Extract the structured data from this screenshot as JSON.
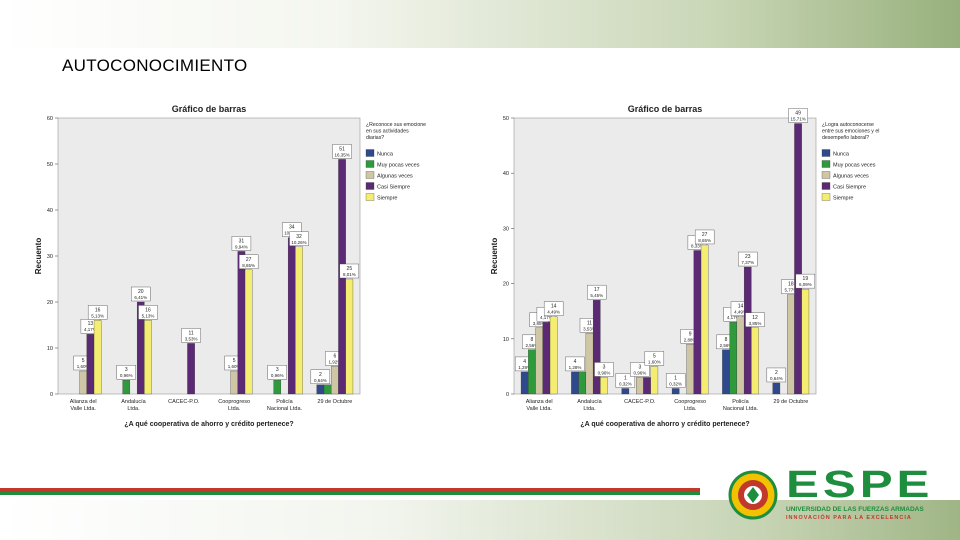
{
  "slide": {
    "title": "AUTOCONOCIMIENTO"
  },
  "logo": {
    "word": "ESPE",
    "line1": "UNIVERSIDAD DE LAS FUERZAS ARMADAS",
    "line2": "INNOVACIÓN PARA LA EXCELENCIA"
  },
  "colors": {
    "Nunca": "#2e4a8c",
    "Muy pocas veces": "#2f9a3c",
    "Algunas veces": "#cfc6a6",
    "Casi Siempre": "#5c2a74",
    "Siempre": "#f4ed72",
    "plot_bg": "#ebebeb"
  },
  "chart_data": [
    {
      "type": "bar",
      "title": "Gráfico de barras",
      "xlabel": "¿A qué cooperativa de ahorro y crédito pertenece?",
      "ylabel": "Recuento",
      "ylim": [
        0,
        60
      ],
      "yticks": [
        0,
        10,
        20,
        30,
        40,
        50,
        60
      ],
      "legend_title": "¿Reconoce sus emociones en sus actividades diarias?",
      "legend_position": "right",
      "categories": [
        "Alianza del Valle Ltda.",
        "Andalucía Ltda.",
        "CACEC-P.O.",
        "Cooprogreso Ltda.",
        "Policía Nacional Ltda.",
        "29 de Octubre"
      ],
      "series": [
        {
          "name": "Nunca",
          "values": [
            null,
            null,
            null,
            null,
            null,
            2
          ],
          "labels": [
            null,
            null,
            null,
            null,
            null,
            "2 0,64%"
          ]
        },
        {
          "name": "Muy pocas veces",
          "values": [
            null,
            3,
            null,
            null,
            3,
            2
          ],
          "labels": [
            null,
            "3 0,96%",
            null,
            null,
            "3 0,96%",
            null
          ]
        },
        {
          "name": "Algunas veces",
          "values": [
            5,
            null,
            null,
            5,
            null,
            6
          ],
          "labels": [
            "5 1,60%",
            null,
            null,
            "5 1,60%",
            null,
            "6 1,92%"
          ]
        },
        {
          "name": "Casi Siempre",
          "values": [
            13,
            20,
            11,
            31,
            34,
            51
          ],
          "labels": [
            "13 4,17%",
            "20 6,41%",
            "11 3,53%",
            "31 9,94%",
            "34 10,90%",
            "51 16,35%"
          ]
        },
        {
          "name": "Siempre",
          "values": [
            16,
            16,
            null,
            27,
            32,
            25
          ],
          "labels": [
            "16 5,13%",
            "16 5,13%",
            null,
            "27 8,65%",
            "32 10,26%",
            "25 8,01%"
          ]
        }
      ],
      "extra_labels": [
        {
          "category": "Alianza del Valle Ltda.",
          "text": "16 5,13%"
        },
        {
          "category": "Policía Nacional Ltda.",
          "text": "6 1,92%"
        },
        {
          "category": "Policía Nacional Ltda.",
          "text": "5 1,60%"
        },
        {
          "category": "29 de Octubre",
          "text": "11 3,53%"
        }
      ]
    },
    {
      "type": "bar",
      "title": "Gráfico de barras",
      "xlabel": "¿A qué cooperativa de ahorro y crédito pertenece?",
      "ylabel": "Recuento",
      "ylim": [
        0,
        50
      ],
      "yticks": [
        0,
        10,
        20,
        30,
        40,
        50
      ],
      "legend_title": "¿Logra autoconocerse entre sus emociones y el desempeño laboral?",
      "legend_position": "right",
      "categories": [
        "Alianza del Valle Ltda.",
        "Andalucía Ltda.",
        "CACEC-P.O.",
        "Cooprogreso Ltda.",
        "Policía Nacional Ltda.",
        "29 de Octubre"
      ],
      "series": [
        {
          "name": "Nunca",
          "values": [
            4,
            4,
            1,
            1,
            8,
            2
          ],
          "labels": [
            "4 1,28%",
            "4 1,28%",
            "1 0,32%",
            "1 0,32%",
            "8 2,56%",
            "2 0,64%"
          ]
        },
        {
          "name": "Muy pocas veces",
          "values": [
            8,
            4,
            null,
            null,
            13,
            null
          ],
          "labels": [
            "8 2,56%",
            null,
            null,
            null,
            "13 4,17%",
            null
          ]
        },
        {
          "name": "Algunas veces",
          "values": [
            12,
            11,
            3,
            9,
            14,
            18
          ],
          "labels": [
            "12 3,85%",
            "11 3,53%",
            "3 0,96%",
            "9 2,88%",
            "14 4,49%",
            "18 5,77%"
          ]
        },
        {
          "name": "Casi Siempre",
          "values": [
            13,
            17,
            3,
            26,
            23,
            49
          ],
          "labels": [
            "13 4,17%",
            "17 5,45%",
            null,
            "26 8,33%",
            "23 7,37%",
            "49 15,71%"
          ]
        },
        {
          "name": "Siempre",
          "values": [
            14,
            3,
            5,
            27,
            12,
            19
          ],
          "labels": [
            "14 4,49%",
            "3 0,96%",
            "5 1,60%",
            "27 8,65%",
            "12 3,85%",
            "19 6,09%"
          ]
        }
      ],
      "extra_labels": [
        {
          "category": "29 de Octubre",
          "text": "5 1,60%"
        }
      ]
    }
  ]
}
